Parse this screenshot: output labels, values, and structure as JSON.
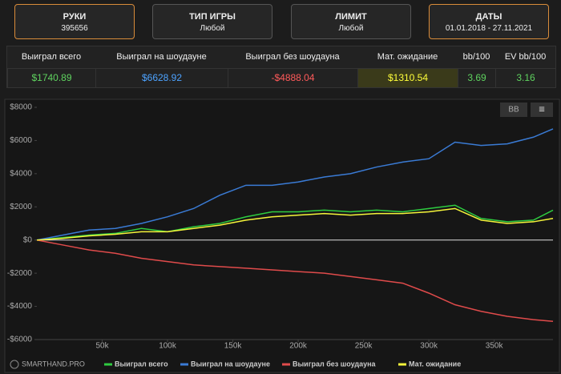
{
  "filters": [
    {
      "title": "РУКИ",
      "value": "395656",
      "active": true
    },
    {
      "title": "ТИП ИГРЫ",
      "value": "Любой",
      "active": false
    },
    {
      "title": "ЛИМИТ",
      "value": "Любой",
      "active": false
    },
    {
      "title": "ДАТЫ",
      "value": "01.01.2018 - 27.11.2021",
      "active": true
    }
  ],
  "stats": [
    {
      "label": "Выиграл всего",
      "value": "$1740.89",
      "color": "#5fd35f"
    },
    {
      "label": "Выиграл на шоудауне",
      "value": "$6628.92",
      "color": "#4da3ff"
    },
    {
      "label": "Выиграл без шоудауна",
      "value": "-$4888.04",
      "color": "#ff5a5a"
    },
    {
      "label": "Мат. ожидание",
      "value": "$1310.54",
      "color": "#ffff3a"
    },
    {
      "label": "bb/100",
      "value": "3.69",
      "color": "#5fd35f"
    },
    {
      "label": "EV bb/100",
      "value": "3.16",
      "color": "#5fd35f"
    }
  ],
  "toolbar": {
    "unit_button": "BB",
    "menu_icon": "≡"
  },
  "brand": "SMARTHAND.PRO",
  "chart_data": {
    "type": "line",
    "x": [
      0,
      20000,
      40000,
      60000,
      80000,
      100000,
      120000,
      140000,
      160000,
      180000,
      200000,
      220000,
      240000,
      260000,
      280000,
      300000,
      320000,
      340000,
      360000,
      380000,
      395000
    ],
    "series": [
      {
        "name": "Выиграл всего",
        "color": "#2ecc40",
        "values": [
          0,
          150,
          300,
          400,
          700,
          500,
          800,
          1000,
          1400,
          1700,
          1700,
          1800,
          1700,
          1800,
          1700,
          1900,
          2100,
          1300,
          1100,
          1200,
          1800
        ]
      },
      {
        "name": "Выиграл на шоудауне",
        "color": "#3a7bd5",
        "values": [
          0,
          300,
          600,
          700,
          1000,
          1400,
          1900,
          2700,
          3300,
          3300,
          3500,
          3800,
          4000,
          4400,
          4700,
          4900,
          5900,
          5700,
          5800,
          6200,
          6700
        ]
      },
      {
        "name": "Выиграл без шоудауна",
        "color": "#e04b4b",
        "values": [
          0,
          -300,
          -600,
          -800,
          -1100,
          -1300,
          -1500,
          -1600,
          -1700,
          -1800,
          -1900,
          -2000,
          -2200,
          -2400,
          -2600,
          -3200,
          -3900,
          -4300,
          -4600,
          -4800,
          -4900
        ]
      },
      {
        "name": "Мат. ожидание",
        "color": "#f5f53a",
        "values": [
          0,
          100,
          250,
          350,
          500,
          500,
          700,
          900,
          1200,
          1400,
          1500,
          1600,
          1500,
          1600,
          1600,
          1700,
          1900,
          1200,
          1000,
          1100,
          1300
        ]
      }
    ],
    "xlim": [
      0,
      395000
    ],
    "ylim": [
      -6000,
      8000
    ],
    "xticks": [
      {
        "value": 50000,
        "label": "50k"
      },
      {
        "value": 100000,
        "label": "100k"
      },
      {
        "value": 150000,
        "label": "150k"
      },
      {
        "value": 200000,
        "label": "200k"
      },
      {
        "value": 250000,
        "label": "250k"
      },
      {
        "value": 300000,
        "label": "300k"
      },
      {
        "value": 350000,
        "label": "350k"
      }
    ],
    "yticks": [
      {
        "value": 8000,
        "label": "$8000"
      },
      {
        "value": 6000,
        "label": "$6000"
      },
      {
        "value": 4000,
        "label": "$4000"
      },
      {
        "value": 2000,
        "label": "$2000"
      },
      {
        "value": 0,
        "label": "$0"
      },
      {
        "value": -2000,
        "label": "-$2000"
      },
      {
        "value": -4000,
        "label": "-$4000"
      },
      {
        "value": -6000,
        "label": "-$6000"
      }
    ],
    "grid": false,
    "legend": "bottom"
  }
}
